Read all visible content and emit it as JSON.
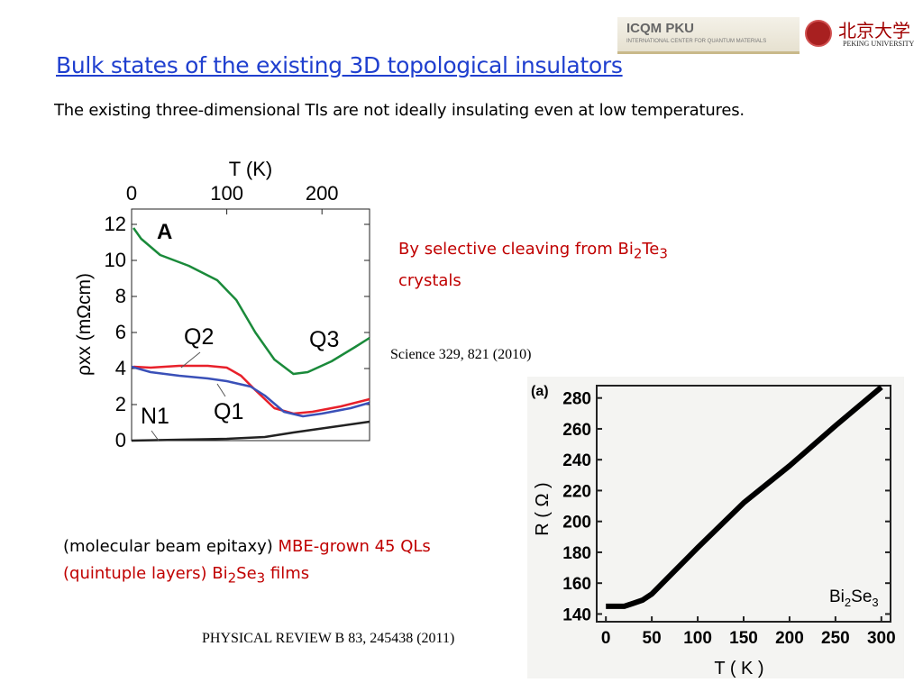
{
  "slide": {
    "title": "Bulk states of the existing 3D topological insulators",
    "subtitle": "The existing three-dimensional TIs are not ideally insulating even at low temperatures.",
    "logos": {
      "icqm": "ICQM PKU",
      "icqm_sub": "INTERNATIONAL CENTER FOR QUANTUM MATERIALS",
      "pku_cn": "北京大学",
      "pku_en": "PEKING UNIVERSITY"
    },
    "note1": {
      "pre": "By selective cleaving from Bi",
      "sub1": "2",
      "mid": "Te",
      "sub2": "3",
      "line2": "crystals"
    },
    "ref1": "Science 329, 821 (2010)",
    "note2": {
      "line1_black": "(molecular beam epitaxy) ",
      "line1_red": "MBE-grown 45 QLs",
      "line2_pre": "(quintuple layers) Bi",
      "sub1": "2",
      "mid": "Se",
      "sub2": "3",
      "post": " films"
    },
    "ref2": "PHYSICAL REVIEW B  83, 245438 (2011)"
  },
  "chart_data": [
    {
      "type": "line",
      "panel_label": "A",
      "xlabel": "T (K)",
      "ylabel": "ρxx (mΩcm)",
      "xlim": [
        0,
        250
      ],
      "ylim": [
        0,
        12.85
      ],
      "xticks": [
        0,
        100,
        200
      ],
      "yticks": [
        0,
        2,
        4,
        6,
        8,
        10,
        12
      ],
      "x_axis_position": "top",
      "series": [
        {
          "name": "Q3",
          "color": "#1a8a3a",
          "x": [
            2,
            10,
            30,
            60,
            90,
            110,
            130,
            150,
            170,
            185,
            210,
            235,
            250
          ],
          "y": [
            11.8,
            11.2,
            10.3,
            9.7,
            8.9,
            7.8,
            6.0,
            4.5,
            3.7,
            3.8,
            4.4,
            5.2,
            5.7
          ]
        },
        {
          "name": "Q2",
          "color": "#e8202a",
          "x": [
            2,
            20,
            50,
            80,
            100,
            115,
            130,
            150,
            170,
            190,
            220,
            250
          ],
          "y": [
            4.1,
            4.05,
            4.15,
            4.15,
            4.05,
            3.6,
            2.8,
            1.8,
            1.5,
            1.6,
            1.9,
            2.3
          ]
        },
        {
          "name": "Q1",
          "color": "#3a50b8",
          "x": [
            0,
            20,
            50,
            80,
            100,
            125,
            140,
            160,
            180,
            200,
            230,
            250
          ],
          "y": [
            4.1,
            3.8,
            3.6,
            3.45,
            3.3,
            3.0,
            2.5,
            1.6,
            1.35,
            1.5,
            1.8,
            2.1
          ]
        },
        {
          "name": "N1",
          "color": "#222222",
          "x": [
            0,
            50,
            100,
            140,
            170,
            210,
            250
          ],
          "y": [
            0,
            0.05,
            0.1,
            0.2,
            0.45,
            0.75,
            1.05
          ]
        }
      ]
    },
    {
      "type": "scatter",
      "panel_label": "(a)",
      "xlabel": "T ( K )",
      "ylabel": "R ( Ω )",
      "xlim": [
        -10,
        310
      ],
      "ylim": [
        135,
        288
      ],
      "xticks": [
        0,
        50,
        100,
        150,
        200,
        250,
        300
      ],
      "yticks": [
        140,
        160,
        180,
        200,
        220,
        240,
        260,
        280
      ],
      "annotation": "Bi2Se3",
      "series": [
        {
          "color": "#000000",
          "x": [
            0,
            20,
            30,
            40,
            50,
            75,
            100,
            150,
            200,
            250,
            300
          ],
          "y": [
            145,
            145,
            147,
            149,
            153,
            168,
            183,
            212,
            236,
            262,
            287
          ]
        }
      ]
    }
  ]
}
